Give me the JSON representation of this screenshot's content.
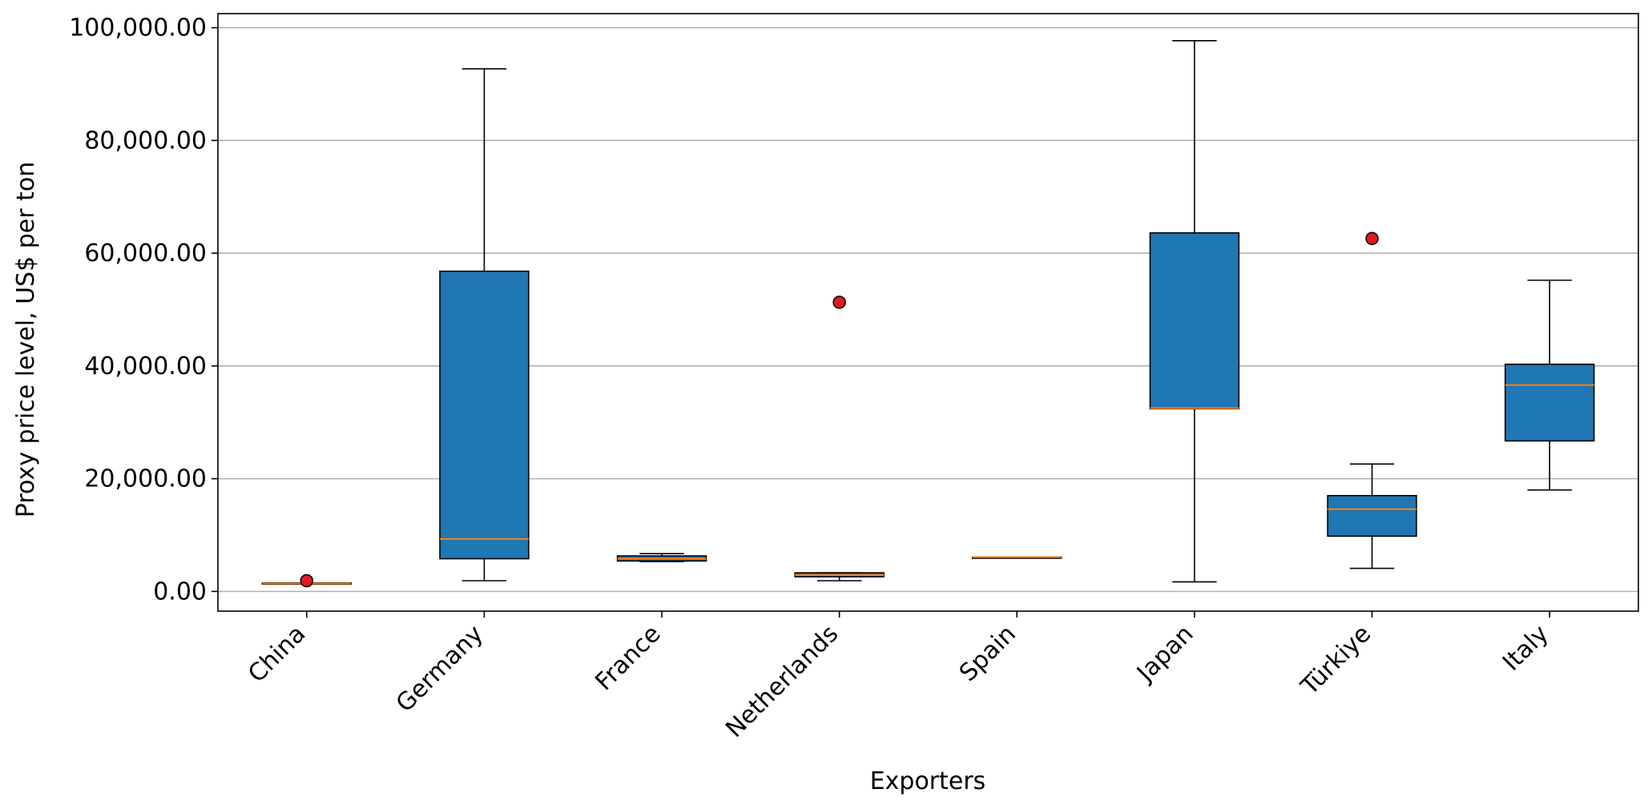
{
  "chart_data": {
    "type": "box",
    "title": "",
    "xlabel": "Exporters",
    "ylabel": "Proxy price level, US$ per ton",
    "ylim": [
      -3500,
      102500
    ],
    "yticks": [
      0,
      20000,
      40000,
      60000,
      80000,
      100000
    ],
    "ytick_labels": [
      "0.00",
      "20,000.00",
      "40,000.00",
      "60,000.00",
      "80,000.00",
      "100,000.00"
    ],
    "grid": "horizontal",
    "categories": [
      "China",
      "Germany",
      "France",
      "Netherlands",
      "Spain",
      "Japan",
      "Türkiye",
      "Italy"
    ],
    "boxes": [
      {
        "category": "China",
        "whisker_low": 1300,
        "q1": 1300,
        "median": 1400,
        "q3": 1500,
        "whisker_high": 1500,
        "outliers": [
          1900
        ]
      },
      {
        "category": "Germany",
        "whisker_low": 1900,
        "q1": 5800,
        "median": 9300,
        "q3": 56800,
        "whisker_high": 92700,
        "outliers": []
      },
      {
        "category": "France",
        "whisker_low": 5300,
        "q1": 5400,
        "median": 5800,
        "q3": 6300,
        "whisker_high": 6700,
        "outliers": []
      },
      {
        "category": "Netherlands",
        "whisker_low": 1900,
        "q1": 2600,
        "median": 2900,
        "q3": 3300,
        "whisker_high": 3300,
        "outliers": [
          51300
        ]
      },
      {
        "category": "Spain",
        "whisker_low": 6100,
        "q1": 6100,
        "median": 6100,
        "q3": 6100,
        "whisker_high": 6100,
        "outliers": []
      },
      {
        "category": "Japan",
        "whisker_low": 1700,
        "q1": 32400,
        "median": 32500,
        "q3": 63600,
        "whisker_high": 97700,
        "outliers": []
      },
      {
        "category": "Türkiye",
        "whisker_low": 4100,
        "q1": 9800,
        "median": 14600,
        "q3": 17000,
        "whisker_high": 22600,
        "outliers": [
          62600
        ]
      },
      {
        "category": "Italy",
        "whisker_low": 18000,
        "q1": 26700,
        "median": 36600,
        "q3": 40300,
        "whisker_high": 55200,
        "outliers": []
      }
    ],
    "colors": {
      "box_fill": "#1f77b4",
      "median": "#ff7f0e",
      "outlier": "#e41a1c",
      "grid": "#b0b0b0",
      "frame": "#000000"
    }
  }
}
